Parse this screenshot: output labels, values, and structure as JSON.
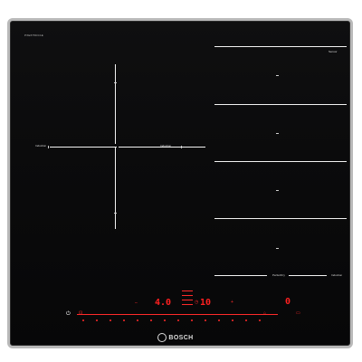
{
  "hob": {
    "model_text": "PXE675DC1E",
    "brand_name": "BOSCH",
    "flex_zone_label_left": "Induction",
    "flex_zone_label_center": "Induction",
    "flex_zone_label_bottom": "Induction",
    "perfect_fry_label": "PerfectFry",
    "sensor_label": "Sensor",
    "zones_right": [
      "—",
      "—",
      "—",
      "—"
    ]
  },
  "panel": {
    "power_level": "4.0",
    "timer_value": "10",
    "right_display": "0"
  },
  "colors": {
    "glass": "#0b0b0c",
    "frame": "#b9b9b9",
    "marking": "#f2f2f2",
    "control_red": "#ff1d1d"
  },
  "icons": [
    "power-icon",
    "lock-icon",
    "timer-icon",
    "fry-sensor-icon",
    "minus-icon",
    "plus-icon",
    "wipe-protect-icon"
  ]
}
